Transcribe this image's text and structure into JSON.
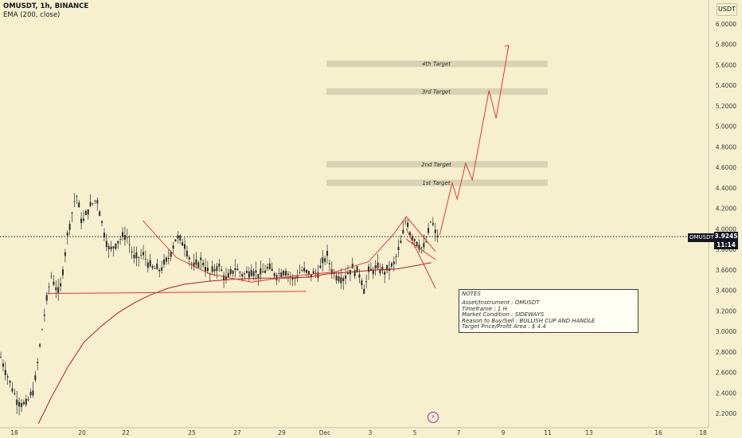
{
  "header": {
    "symbol_line": "OMUSDT, 1h, BINANCE",
    "indicator": "EMA (200, close)"
  },
  "currency_button": "USDT",
  "price_tag": {
    "symbol": "OMUSDT",
    "price": "3.9245",
    "countdown": "11:14",
    "value": 3.9245
  },
  "chart_data": {
    "type": "candlestick",
    "instrument": "OMUSDT",
    "timeframe": "1h",
    "exchange": "BINANCE",
    "y_axis": {
      "ticks": [
        "6.0000",
        "5.8000",
        "5.6000",
        "5.4000",
        "5.2000",
        "5.0000",
        "4.8000",
        "4.6000",
        "4.4000",
        "4.2000",
        "4.0000",
        "3.8000",
        "3.6000",
        "3.4000",
        "3.2000",
        "3.0000",
        "2.8000",
        "2.6000",
        "2.4000",
        "2.2000"
      ],
      "range": [
        2.12,
        6.16
      ]
    },
    "x_axis": {
      "ticks": [
        "18",
        "20",
        "22",
        "25",
        "27",
        "29",
        "Dec",
        "3",
        "5",
        "7",
        "9",
        "11",
        "13",
        "16",
        "18"
      ]
    },
    "current_price": 3.9245,
    "targets": [
      {
        "label": "1st Target",
        "price": 4.45
      },
      {
        "label": "2nd Target",
        "price": 4.63
      },
      {
        "label": "3rd Target",
        "price": 5.34
      },
      {
        "label": "4th Target",
        "price": 5.61
      }
    ],
    "price_series": [
      [
        0,
        2.75
      ],
      [
        2,
        2.52
      ],
      [
        4,
        2.32
      ],
      [
        6,
        2.28
      ],
      [
        8,
        2.45
      ],
      [
        10,
        3.05
      ],
      [
        12,
        3.55
      ],
      [
        14,
        3.35
      ],
      [
        16,
        3.95
      ],
      [
        18,
        4.35
      ],
      [
        19.5,
        4.05
      ],
      [
        21,
        4.2
      ],
      [
        23,
        4.3
      ],
      [
        24.5,
        4.0
      ],
      [
        26,
        3.78
      ],
      [
        28,
        3.88
      ],
      [
        30,
        3.95
      ],
      [
        32,
        3.7
      ],
      [
        34,
        3.75
      ],
      [
        36,
        3.62
      ],
      [
        38,
        3.6
      ],
      [
        40,
        3.7
      ],
      [
        42,
        3.92
      ],
      [
        44,
        3.85
      ],
      [
        46,
        3.62
      ],
      [
        48,
        3.7
      ],
      [
        50,
        3.55
      ],
      [
        52,
        3.65
      ],
      [
        54,
        3.5
      ],
      [
        56,
        3.62
      ],
      [
        58,
        3.55
      ],
      [
        60,
        3.6
      ],
      [
        62,
        3.55
      ],
      [
        64,
        3.62
      ],
      [
        66,
        3.55
      ],
      [
        68,
        3.6
      ],
      [
        70,
        3.5
      ],
      [
        72,
        3.6
      ],
      [
        74,
        3.55
      ],
      [
        76,
        3.58
      ],
      [
        78,
        3.75
      ],
      [
        79,
        3.62
      ],
      [
        80,
        3.55
      ],
      [
        82,
        3.52
      ],
      [
        84,
        3.62
      ],
      [
        86,
        3.55
      ],
      [
        87,
        3.4
      ],
      [
        88,
        3.58
      ],
      [
        90,
        3.62
      ],
      [
        92,
        3.58
      ],
      [
        94,
        3.65
      ],
      [
        96,
        3.9
      ],
      [
        97,
        4.12
      ],
      [
        98,
        3.95
      ],
      [
        100,
        3.85
      ],
      [
        101,
        3.8
      ],
      [
        102,
        3.9
      ],
      [
        103,
        4.1
      ],
      [
        104,
        3.95
      ],
      [
        105,
        3.92
      ]
    ],
    "ema_200": [
      [
        9,
        2.1
      ],
      [
        12,
        2.35
      ],
      [
        16,
        2.65
      ],
      [
        20,
        2.9
      ],
      [
        24,
        3.05
      ],
      [
        28,
        3.18
      ],
      [
        32,
        3.28
      ],
      [
        36,
        3.36
      ],
      [
        40,
        3.42
      ],
      [
        44,
        3.46
      ],
      [
        50,
        3.49
      ],
      [
        56,
        3.51
      ],
      [
        62,
        3.52
      ],
      [
        68,
        3.52
      ],
      [
        74,
        3.53
      ],
      [
        78,
        3.56
      ],
      [
        84,
        3.58
      ],
      [
        90,
        3.6
      ],
      [
        95,
        3.61
      ],
      [
        99,
        3.64
      ],
      [
        103,
        3.67
      ]
    ],
    "projection": [
      [
        105,
        3.94
      ],
      [
        108,
        4.45
      ],
      [
        109.2,
        4.29
      ],
      [
        111.2,
        4.64
      ],
      [
        112.8,
        4.48
      ],
      [
        116.8,
        5.35
      ],
      [
        118.5,
        5.08
      ],
      [
        121.5,
        5.79
      ]
    ],
    "pattern": {
      "name": "BULLISH CUP AND HANDLE",
      "cup_curve": [
        [
          34,
          4.08
        ],
        [
          42,
          3.72
        ],
        [
          50,
          3.56
        ],
        [
          60,
          3.48
        ],
        [
          70,
          3.54
        ],
        [
          80,
          3.58
        ],
        [
          88,
          3.68
        ],
        [
          94,
          3.95
        ],
        [
          97,
          4.12
        ]
      ],
      "base_line": [
        [
          11,
          3.37
        ],
        [
          73,
          3.39
        ]
      ],
      "handle_upper": [
        [
          97,
          4.12
        ],
        [
          104,
          3.78
        ]
      ],
      "handle_lower": [
        [
          97,
          4.0
        ],
        [
          104,
          3.42
        ]
      ],
      "handle_mid": [
        [
          97,
          3.9
        ],
        [
          104,
          3.7
        ]
      ]
    }
  },
  "notes": {
    "title": "NOTES",
    "lines": [
      "Asset/Instrument : OMUSDT",
      "Timeframe : 1 H",
      "Market Condition : SIDEWAYS",
      "Reason to Buy/Sell : BULLISH CUP AND HANDLE",
      "Target Price/Profit Area : $ 4.4"
    ]
  },
  "colors": {
    "background": "#f7f0cf",
    "candle": "#2b2b2b",
    "ema": "#b71c1c",
    "drawing": "#e53935",
    "target_zone": "#d8d3b4",
    "price_line": "#131722"
  }
}
